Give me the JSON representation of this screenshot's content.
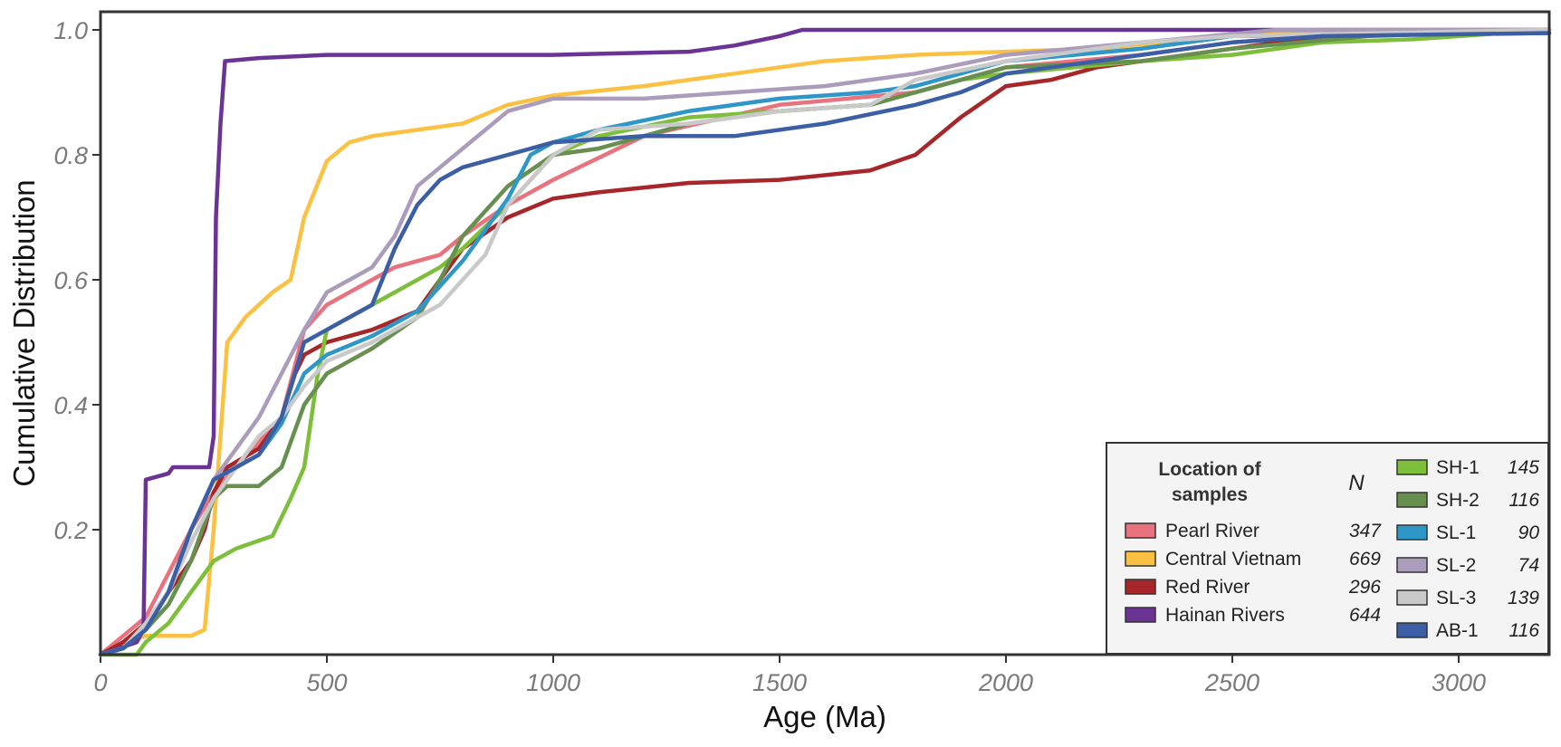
{
  "chart_data": {
    "type": "line",
    "title": "",
    "xlabel": "Age (Ma)",
    "ylabel": "Cumulative Distribution",
    "xlim": [
      0,
      3200
    ],
    "ylim": [
      0,
      1.0
    ],
    "xticks": [
      0,
      500,
      1000,
      1500,
      2000,
      2500,
      3000
    ],
    "yticks": [
      0.2,
      0.4,
      0.6,
      0.8,
      1.0
    ],
    "xtick_labels": [
      "0",
      "500",
      "1000",
      "1500",
      "2000",
      "2500",
      "3000"
    ],
    "ytick_labels": [
      "0.2",
      "0.4",
      "0.6",
      "0.8",
      "1.0"
    ],
    "legend": {
      "title": "Location of samples",
      "n_header": "N",
      "placement": "bottom-right"
    },
    "series": [
      {
        "name": "Pearl River",
        "n": "347",
        "color": "#e8737e",
        "points": [
          [
            0,
            0
          ],
          [
            50,
            0.03
          ],
          [
            100,
            0.06
          ],
          [
            150,
            0.13
          ],
          [
            200,
            0.2
          ],
          [
            250,
            0.26
          ],
          [
            300,
            0.3
          ],
          [
            350,
            0.34
          ],
          [
            400,
            0.38
          ],
          [
            450,
            0.52
          ],
          [
            500,
            0.56
          ],
          [
            550,
            0.58
          ],
          [
            600,
            0.6
          ],
          [
            650,
            0.62
          ],
          [
            700,
            0.63
          ],
          [
            750,
            0.64
          ],
          [
            800,
            0.67
          ],
          [
            900,
            0.72
          ],
          [
            1000,
            0.76
          ],
          [
            1200,
            0.83
          ],
          [
            1500,
            0.88
          ],
          [
            1800,
            0.9
          ],
          [
            2000,
            0.94
          ],
          [
            2300,
            0.96
          ],
          [
            2500,
            0.98
          ],
          [
            2700,
            0.99
          ],
          [
            3200,
            1.0
          ]
        ]
      },
      {
        "name": "Central Vietnam",
        "n": "669",
        "color": "#fac142",
        "points": [
          [
            0,
            0
          ],
          [
            50,
            0.02
          ],
          [
            100,
            0.03
          ],
          [
            150,
            0.03
          ],
          [
            200,
            0.03
          ],
          [
            230,
            0.04
          ],
          [
            250,
            0.2
          ],
          [
            280,
            0.5
          ],
          [
            320,
            0.54
          ],
          [
            380,
            0.58
          ],
          [
            420,
            0.6
          ],
          [
            450,
            0.7
          ],
          [
            500,
            0.79
          ],
          [
            550,
            0.82
          ],
          [
            600,
            0.83
          ],
          [
            700,
            0.84
          ],
          [
            800,
            0.85
          ],
          [
            900,
            0.88
          ],
          [
            1000,
            0.895
          ],
          [
            1200,
            0.91
          ],
          [
            1400,
            0.93
          ],
          [
            1600,
            0.95
          ],
          [
            1800,
            0.96
          ],
          [
            2000,
            0.965
          ],
          [
            2200,
            0.97
          ],
          [
            2500,
            0.99
          ],
          [
            2700,
            1.0
          ],
          [
            3200,
            1.0
          ]
        ]
      },
      {
        "name": "Red River",
        "n": "296",
        "color": "#a62629",
        "points": [
          [
            0,
            0
          ],
          [
            50,
            0.02
          ],
          [
            100,
            0.05
          ],
          [
            150,
            0.1
          ],
          [
            200,
            0.15
          ],
          [
            230,
            0.2
          ],
          [
            250,
            0.26
          ],
          [
            280,
            0.3
          ],
          [
            350,
            0.33
          ],
          [
            400,
            0.38
          ],
          [
            430,
            0.45
          ],
          [
            450,
            0.48
          ],
          [
            500,
            0.5
          ],
          [
            600,
            0.52
          ],
          [
            700,
            0.55
          ],
          [
            750,
            0.6
          ],
          [
            800,
            0.65
          ],
          [
            900,
            0.7
          ],
          [
            1000,
            0.73
          ],
          [
            1100,
            0.74
          ],
          [
            1300,
            0.755
          ],
          [
            1500,
            0.76
          ],
          [
            1700,
            0.775
          ],
          [
            1800,
            0.8
          ],
          [
            1900,
            0.86
          ],
          [
            2000,
            0.91
          ],
          [
            2100,
            0.92
          ],
          [
            2200,
            0.94
          ],
          [
            2500,
            0.97
          ],
          [
            2700,
            0.99
          ],
          [
            3200,
            1.0
          ]
        ]
      },
      {
        "name": "Hainan Rivers",
        "n": "644",
        "color": "#6b3494",
        "points": [
          [
            0,
            0
          ],
          [
            80,
            0.02
          ],
          [
            95,
            0.04
          ],
          [
            100,
            0.28
          ],
          [
            150,
            0.29
          ],
          [
            160,
            0.3
          ],
          [
            240,
            0.3
          ],
          [
            250,
            0.35
          ],
          [
            255,
            0.7
          ],
          [
            265,
            0.85
          ],
          [
            275,
            0.95
          ],
          [
            350,
            0.955
          ],
          [
            500,
            0.96
          ],
          [
            700,
            0.96
          ],
          [
            1000,
            0.96
          ],
          [
            1300,
            0.965
          ],
          [
            1400,
            0.975
          ],
          [
            1500,
            0.99
          ],
          [
            1550,
            1.0
          ],
          [
            3200,
            1.0
          ]
        ]
      },
      {
        "name": "SH-1",
        "n": "145",
        "color": "#7dbf3a",
        "points": [
          [
            0,
            0
          ],
          [
            80,
            0.0
          ],
          [
            100,
            0.02
          ],
          [
            150,
            0.05
          ],
          [
            200,
            0.1
          ],
          [
            250,
            0.15
          ],
          [
            300,
            0.17
          ],
          [
            380,
            0.19
          ],
          [
            420,
            0.25
          ],
          [
            450,
            0.3
          ],
          [
            480,
            0.45
          ],
          [
            500,
            0.52
          ],
          [
            550,
            0.54
          ],
          [
            600,
            0.56
          ],
          [
            700,
            0.6
          ],
          [
            750,
            0.62
          ],
          [
            800,
            0.65
          ],
          [
            900,
            0.72
          ],
          [
            1000,
            0.8
          ],
          [
            1100,
            0.83
          ],
          [
            1300,
            0.86
          ],
          [
            1500,
            0.87
          ],
          [
            1700,
            0.88
          ],
          [
            1800,
            0.9
          ],
          [
            1900,
            0.92
          ],
          [
            2000,
            0.93
          ],
          [
            2300,
            0.95
          ],
          [
            2500,
            0.96
          ],
          [
            2700,
            0.98
          ],
          [
            2900,
            0.985
          ],
          [
            3200,
            1.0
          ]
        ]
      },
      {
        "name": "SH-2",
        "n": "116",
        "color": "#668f50",
        "points": [
          [
            0,
            0
          ],
          [
            50,
            0.01
          ],
          [
            100,
            0.04
          ],
          [
            150,
            0.08
          ],
          [
            200,
            0.15
          ],
          [
            250,
            0.25
          ],
          [
            280,
            0.27
          ],
          [
            350,
            0.27
          ],
          [
            400,
            0.3
          ],
          [
            450,
            0.4
          ],
          [
            500,
            0.45
          ],
          [
            550,
            0.47
          ],
          [
            600,
            0.49
          ],
          [
            700,
            0.54
          ],
          [
            750,
            0.6
          ],
          [
            800,
            0.67
          ],
          [
            900,
            0.75
          ],
          [
            1000,
            0.8
          ],
          [
            1100,
            0.81
          ],
          [
            1300,
            0.85
          ],
          [
            1500,
            0.87
          ],
          [
            1700,
            0.88
          ],
          [
            1800,
            0.9
          ],
          [
            2000,
            0.94
          ],
          [
            2300,
            0.95
          ],
          [
            2500,
            0.97
          ],
          [
            2800,
            0.99
          ],
          [
            3200,
            1.0
          ]
        ]
      },
      {
        "name": "SL-1",
        "n": "90",
        "color": "#2f96c8",
        "points": [
          [
            0,
            0
          ],
          [
            50,
            0.01
          ],
          [
            100,
            0.04
          ],
          [
            150,
            0.1
          ],
          [
            200,
            0.2
          ],
          [
            250,
            0.28
          ],
          [
            300,
            0.3
          ],
          [
            350,
            0.32
          ],
          [
            400,
            0.37
          ],
          [
            450,
            0.45
          ],
          [
            500,
            0.48
          ],
          [
            600,
            0.51
          ],
          [
            700,
            0.55
          ],
          [
            800,
            0.63
          ],
          [
            900,
            0.73
          ],
          [
            950,
            0.8
          ],
          [
            1000,
            0.82
          ],
          [
            1100,
            0.84
          ],
          [
            1300,
            0.87
          ],
          [
            1500,
            0.89
          ],
          [
            1700,
            0.9
          ],
          [
            1800,
            0.91
          ],
          [
            2000,
            0.95
          ],
          [
            2300,
            0.97
          ],
          [
            2500,
            0.99
          ],
          [
            3200,
            0.995
          ]
        ]
      },
      {
        "name": "SL-2",
        "n": "74",
        "color": "#ab9cbc",
        "points": [
          [
            0,
            0
          ],
          [
            50,
            0.01
          ],
          [
            100,
            0.05
          ],
          [
            150,
            0.1
          ],
          [
            200,
            0.2
          ],
          [
            250,
            0.28
          ],
          [
            300,
            0.33
          ],
          [
            350,
            0.38
          ],
          [
            400,
            0.45
          ],
          [
            450,
            0.52
          ],
          [
            500,
            0.58
          ],
          [
            600,
            0.62
          ],
          [
            650,
            0.67
          ],
          [
            700,
            0.75
          ],
          [
            750,
            0.78
          ],
          [
            800,
            0.81
          ],
          [
            900,
            0.87
          ],
          [
            1000,
            0.89
          ],
          [
            1200,
            0.89
          ],
          [
            1400,
            0.9
          ],
          [
            1600,
            0.91
          ],
          [
            1800,
            0.93
          ],
          [
            2000,
            0.96
          ],
          [
            2300,
            0.98
          ],
          [
            2600,
            1.0
          ],
          [
            3200,
            1.0
          ]
        ]
      },
      {
        "name": "SL-3",
        "n": "139",
        "color": "#c9c9c9",
        "points": [
          [
            0,
            0
          ],
          [
            50,
            0.01
          ],
          [
            100,
            0.05
          ],
          [
            150,
            0.1
          ],
          [
            200,
            0.18
          ],
          [
            250,
            0.25
          ],
          [
            300,
            0.3
          ],
          [
            350,
            0.35
          ],
          [
            400,
            0.38
          ],
          [
            450,
            0.43
          ],
          [
            500,
            0.47
          ],
          [
            600,
            0.5
          ],
          [
            700,
            0.54
          ],
          [
            750,
            0.56
          ],
          [
            800,
            0.6
          ],
          [
            850,
            0.64
          ],
          [
            900,
            0.72
          ],
          [
            1000,
            0.8
          ],
          [
            1100,
            0.84
          ],
          [
            1300,
            0.85
          ],
          [
            1500,
            0.87
          ],
          [
            1700,
            0.88
          ],
          [
            1800,
            0.92
          ],
          [
            2000,
            0.95
          ],
          [
            2300,
            0.98
          ],
          [
            2500,
            0.99
          ],
          [
            3200,
            1.0
          ]
        ]
      },
      {
        "name": "AB-1",
        "n": "116",
        "color": "#3b5ea5",
        "points": [
          [
            0,
            0
          ],
          [
            50,
            0.01
          ],
          [
            100,
            0.04
          ],
          [
            150,
            0.1
          ],
          [
            200,
            0.2
          ],
          [
            250,
            0.28
          ],
          [
            300,
            0.3
          ],
          [
            350,
            0.32
          ],
          [
            400,
            0.38
          ],
          [
            450,
            0.5
          ],
          [
            500,
            0.52
          ],
          [
            600,
            0.56
          ],
          [
            650,
            0.65
          ],
          [
            700,
            0.72
          ],
          [
            750,
            0.76
          ],
          [
            800,
            0.78
          ],
          [
            900,
            0.8
          ],
          [
            1000,
            0.82
          ],
          [
            1200,
            0.83
          ],
          [
            1400,
            0.83
          ],
          [
            1600,
            0.85
          ],
          [
            1800,
            0.88
          ],
          [
            1900,
            0.9
          ],
          [
            2000,
            0.93
          ],
          [
            2300,
            0.96
          ],
          [
            2500,
            0.98
          ],
          [
            2700,
            0.99
          ],
          [
            3200,
            0.995
          ]
        ]
      }
    ]
  }
}
